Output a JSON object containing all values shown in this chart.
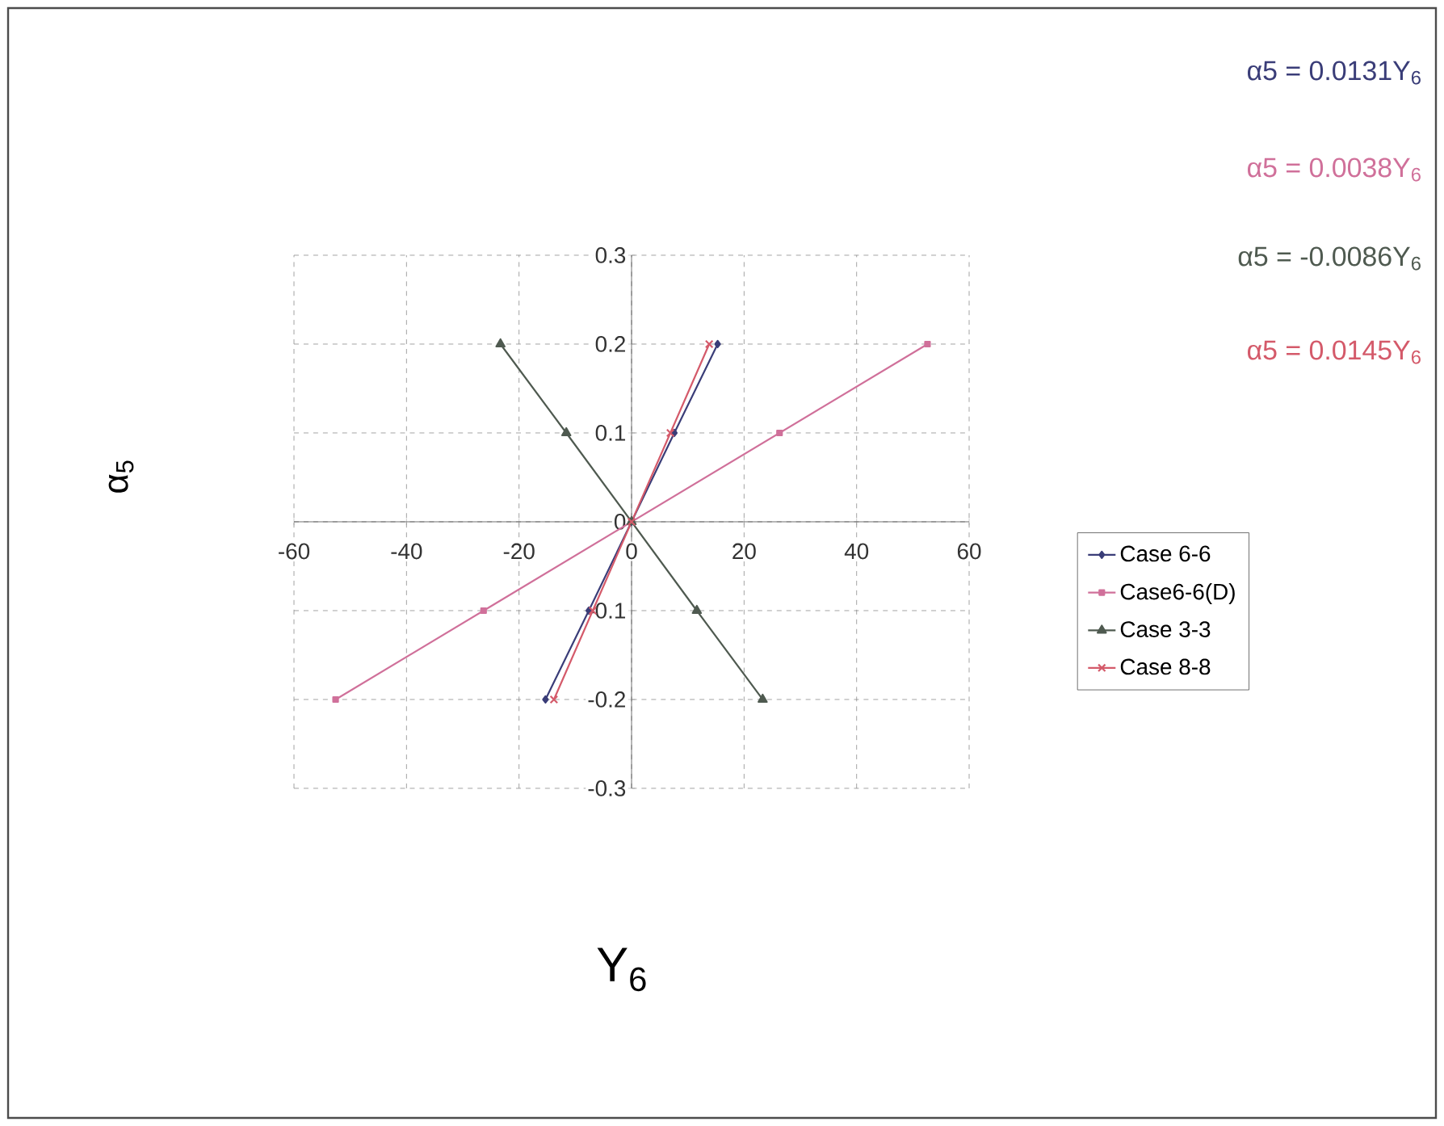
{
  "chart_data": {
    "type": "line",
    "xlabel": "Y$_{6}$",
    "ylabel": "α$_{5}$",
    "xlim": [
      -60,
      60
    ],
    "xticks": [
      -60,
      -40,
      -20,
      0,
      20,
      40,
      60
    ],
    "ylim": [
      -0.3,
      0.3
    ],
    "yticks": [
      -0.3,
      -0.2,
      -0.1,
      0,
      0.1,
      0.2,
      0.3
    ],
    "grid": true,
    "legend": "right",
    "line_style": "solid",
    "annotations": [
      "α5 = 0.0131Y$_{6}$",
      "α5 = 0.0038Y$_{6}$",
      "α5 = -0.0086Y$_{6}$",
      "α5 = 0.0145Y$_{6}$"
    ],
    "series": [
      {
        "name": "Case 6-6",
        "color": "#3a3d78",
        "marker": "diamond",
        "x": [
          -15.3,
          -7.6,
          0,
          7.6,
          15.3
        ],
        "values": [
          -0.2,
          -0.1,
          0,
          0.1,
          0.2
        ]
      },
      {
        "name": "Case6-6(D)",
        "color": "#d0709a",
        "marker": "square",
        "x": [
          -52.6,
          -26.3,
          0,
          26.3,
          52.6
        ],
        "values": [
          -0.2,
          -0.1,
          0,
          0.1,
          0.2
        ]
      },
      {
        "name": "Case 3-3",
        "color": "#4f5a50",
        "marker": "triangle",
        "x": [
          23.3,
          11.6,
          0,
          -11.6,
          -23.3
        ],
        "values": [
          -0.2,
          -0.1,
          0,
          0.1,
          0.2
        ]
      },
      {
        "name": "Case 8-8",
        "color": "#d45a6a",
        "marker": "cross",
        "x": [
          -13.8,
          -6.9,
          0,
          6.9,
          13.8
        ],
        "values": [
          -0.2,
          -0.1,
          0,
          0.1,
          0.2
        ]
      }
    ]
  }
}
